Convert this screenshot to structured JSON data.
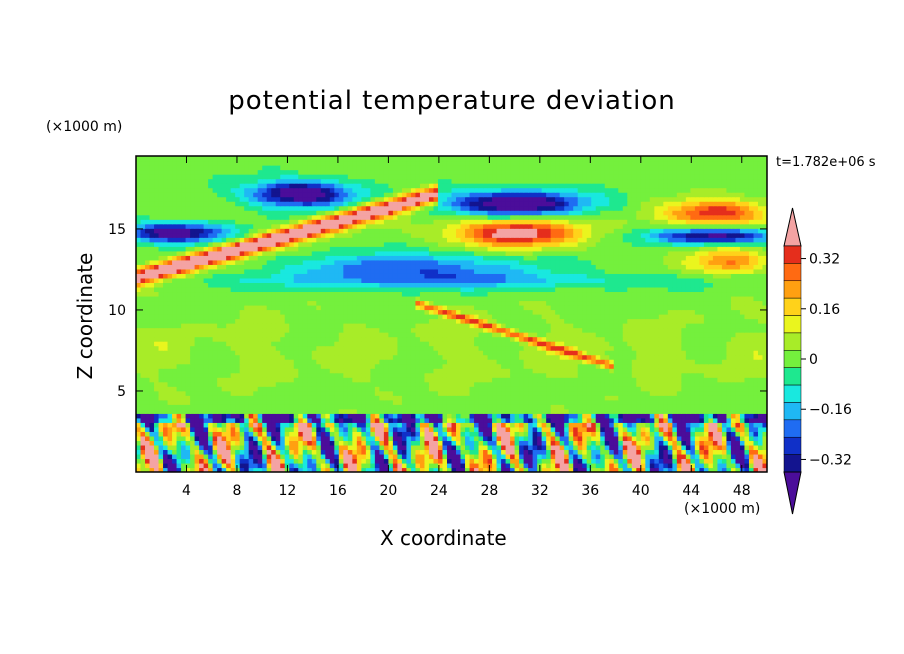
{
  "chart_data": {
    "type": "heatmap",
    "title": "potential temperature deviation",
    "xlabel": "X coordinate",
    "ylabel": "Z coordinate",
    "x_unit": "(×1000 m)",
    "y_unit": "(×1000 m)",
    "time_label": "t=1.782e+06 s",
    "xlim": [
      0,
      50
    ],
    "ylim": [
      0,
      19.5
    ],
    "x_ticks": [
      4,
      8,
      12,
      16,
      20,
      24,
      28,
      32,
      36,
      40,
      44,
      48
    ],
    "x_tick_labels": [
      "4",
      "8",
      "12",
      "16",
      "20",
      "24",
      "28",
      "32",
      "36",
      "40",
      "44",
      "48"
    ],
    "y_ticks": [
      5,
      10,
      15
    ],
    "y_tick_labels": [
      "5",
      "10",
      "15"
    ],
    "colorbar": {
      "levels": [
        -0.4,
        -0.36,
        -0.32,
        -0.28,
        -0.24,
        -0.2,
        -0.16,
        -0.12,
        -0.08,
        -0.04,
        0,
        0.04,
        0.08,
        0.12,
        0.16,
        0.2,
        0.24,
        0.28,
        0.32,
        0.36,
        0.4
      ],
      "colors": [
        "#4b0d9a",
        "#13148f",
        "#1030c8",
        "#1f6cf2",
        "#1fb8f4",
        "#19e8df",
        "#1ee88f",
        "#74f03d",
        "#a8ec28",
        "#eaf51e",
        "#ffd21a",
        "#ffa011",
        "#ff6a12",
        "#e52e1c",
        "#f4a3a3"
      ],
      "tick_values": [
        0.32,
        0.16,
        0,
        -0.16,
        -0.32
      ],
      "tick_labels": [
        "0.32",
        "0.16",
        "0",
        "−0.16",
        "−0.32"
      ],
      "extend": "both"
    },
    "field_regions": {
      "upper_layer_z": [
        12,
        18
      ],
      "lower_turbulent_layer_z": [
        0,
        3.5
      ],
      "mid_layer_value_approx": 0
    }
  }
}
